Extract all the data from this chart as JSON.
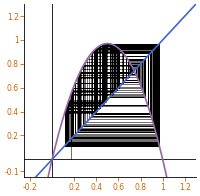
{
  "r": 3.88,
  "a1": 0.17,
  "n_iterations": 200,
  "xlim": [
    -0.25,
    1.3
  ],
  "ylim": [
    -0.15,
    1.3
  ],
  "xticks": [
    -0.2,
    0.2,
    0.4,
    0.6,
    0.8,
    1.0,
    1.2
  ],
  "yticks": [
    -0.1,
    0.2,
    0.4,
    0.6,
    0.8,
    1.0,
    1.2
  ],
  "map_color": "#9966aa",
  "diagonal_color": "#4466cc",
  "cobweb_color": "#000000",
  "background_color": "#ffffff",
  "figsize": [
    2.0,
    1.96
  ],
  "dpi": 100
}
